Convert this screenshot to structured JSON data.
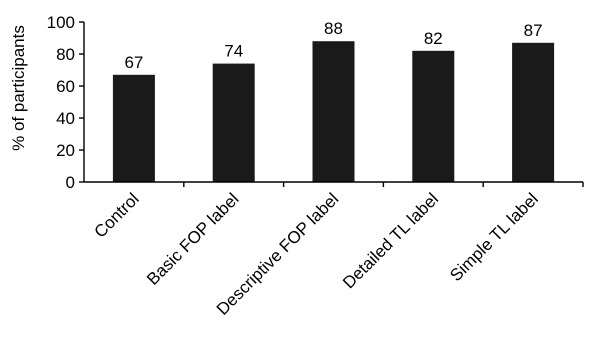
{
  "chart_data": {
    "type": "bar",
    "title": "",
    "xlabel": "",
    "ylabel": "% of participants",
    "ylim": [
      0,
      100
    ],
    "yticks": [
      0,
      20,
      40,
      60,
      80,
      100
    ],
    "grid": false,
    "categories": [
      "Control",
      "Basic FOP label",
      "Descriptive FOP label",
      "Detailed TL label",
      "Simple TL label"
    ],
    "values": [
      67,
      74,
      88,
      82,
      87
    ],
    "data_labels": [
      "67",
      "74",
      "88",
      "82",
      "87"
    ],
    "bar_color": "#1a1a1a"
  }
}
